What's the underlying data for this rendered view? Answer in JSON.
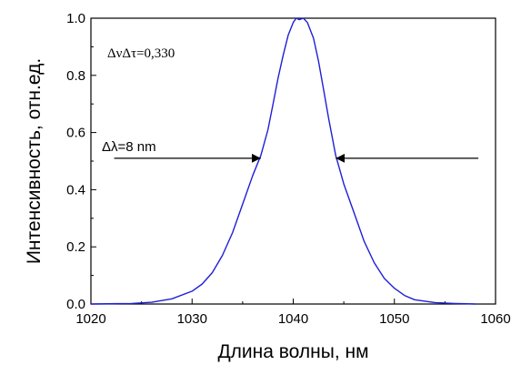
{
  "chart_data": {
    "type": "line",
    "xlabel": "Длина волны, нм",
    "ylabel": "Интенсивность, отн.ед.",
    "xlim": [
      1020,
      1060
    ],
    "ylim": [
      0.0,
      1.0
    ],
    "x_ticks": [
      "1020",
      "1030",
      "1040",
      "1050",
      "1060"
    ],
    "y_ticks": [
      "0.0",
      "0.2",
      "0.4",
      "0.6",
      "0.8",
      "1.0"
    ],
    "grid": false,
    "line_color": "#1f1fd6",
    "series": [
      {
        "x": [
          1020,
          1024,
          1026,
          1028,
          1030,
          1031,
          1032,
          1033,
          1034,
          1035,
          1036,
          1036.8,
          1037.5,
          1038,
          1038.5,
          1039,
          1039.5,
          1040,
          1040.3,
          1040.6,
          1041,
          1041.4,
          1042,
          1042.5,
          1043,
          1043.5,
          1044.2,
          1045,
          1046,
          1047,
          1048,
          1049,
          1050,
          1051,
          1052,
          1054,
          1056,
          1058
        ],
        "y": [
          0.0,
          0.002,
          0.006,
          0.018,
          0.045,
          0.07,
          0.11,
          0.17,
          0.25,
          0.35,
          0.45,
          0.52,
          0.61,
          0.7,
          0.79,
          0.87,
          0.94,
          0.985,
          1.0,
          0.995,
          1.0,
          0.985,
          0.93,
          0.85,
          0.75,
          0.65,
          0.52,
          0.42,
          0.32,
          0.22,
          0.145,
          0.09,
          0.055,
          0.03,
          0.015,
          0.005,
          0.002,
          0.0
        ]
      }
    ],
    "annotations": {
      "product": "ΔνΔτ=0,330",
      "width_label": "Δλ=8 nm",
      "left_arrow": {
        "from_x": 1022.3,
        "to_x": 1036.8,
        "y": 0.51
      },
      "right_arrow": {
        "from_x": 1058.3,
        "to_x": 1044.2,
        "y": 0.51
      }
    }
  }
}
